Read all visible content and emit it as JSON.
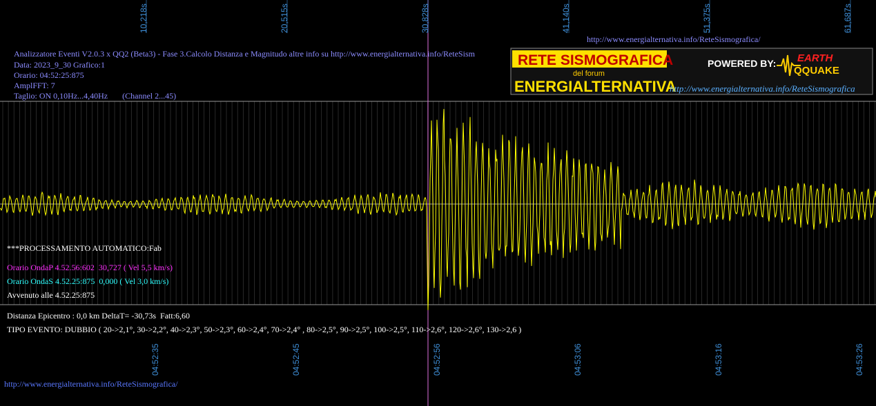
{
  "top_url": "http://www.energialternativa.info/ReteSismografica/",
  "header": {
    "lines": [
      "Analizzatore Eventi V2.0.3 x QQ2 (Beta3) - Fase 3.Calcolo Distanza e Magnitudo altre info su http://www.energialternativa.info/ReteSism",
      "Data: 2023_9_30 Grafico:1",
      "Orario: 04:52:25:875",
      "AmplFFT: 7",
      "Taglio: ON 0,10Hz...4,40Hz       (Channel 2...45)"
    ]
  },
  "logo": {
    "title": "RETE SISMOGRAFICA",
    "subtitle": "del forum",
    "name": "ENERGIALTERNATIVA",
    "powered": "POWERED BY:",
    "brand_top": "EARTH",
    "brand_bottom": "QQUAKE",
    "url": "http://www.energialternativa.info/ReteSismografica"
  },
  "top_axis": [
    "10,218s",
    "20,515s",
    "30,828s",
    "41,140s",
    "51,375s",
    "61,687s"
  ],
  "bottom_axis": [
    "04:52:35",
    "04:52:45",
    "04:52:56",
    "04:53:06",
    "04:53:16",
    "04:53:26"
  ],
  "info": {
    "processing": "***PROCESSAMENTO AUTOMATICO:Fab",
    "onda_p": "Orario OndaP 4.52.56:602  30,727 ( Vel 5,5 km/s)",
    "onda_s": "Orario OndaS 4.52.25:875  0,000 ( Vel 3,0 km/s)",
    "occurred": "Avvenuto alle 4.52.25:875",
    "distance": "Distanza Epicentro : 0,0 km DeltaT= -30,73s  Fatt:6,60",
    "event_type": "TIPO EVENTO: DUBBIO ( 20->2,1°, 30->2,2°, 40->2,3°, 50->2,3°, 60->2,4°, 70->2,4° , 80->2,5°, 90->2,5°, 100->2,5°, 110->2,6°, 120->2,6°, 130->2,6 )"
  },
  "bottom_url": "http://www.energialternativa.info/ReteSismografica/"
}
